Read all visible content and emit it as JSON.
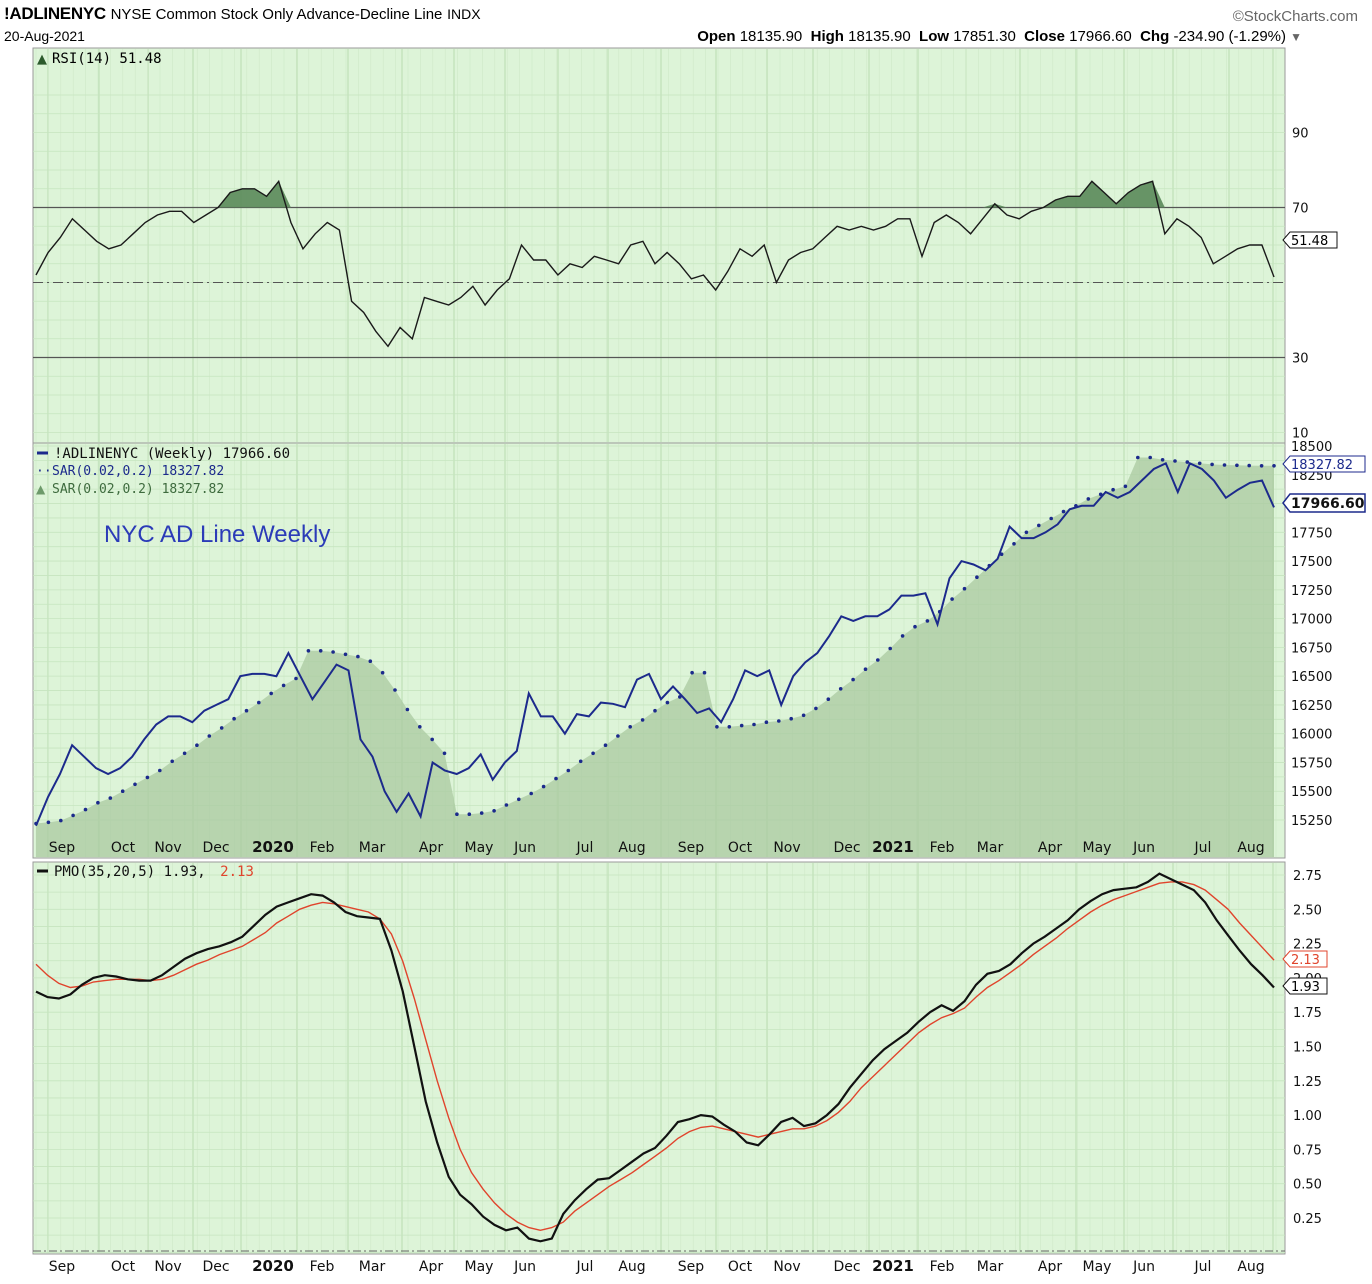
{
  "header": {
    "symbol": "!ADLINENYC",
    "description": "NYSE Common Stock Only Advance-Decline Line",
    "exchange": "INDX",
    "date": "20-Aug-2021",
    "brand": "©StockCharts.com",
    "open_label": "Open",
    "open": "18135.90",
    "high_label": "High",
    "high": "18135.90",
    "low_label": "Low",
    "low": "17851.30",
    "close_label": "Close",
    "close": "17966.60",
    "chg_label": "Chg",
    "chg": "-234.90 (-1.29%)",
    "dropdown_icon": "caret-down-icon"
  },
  "rsi_panel": {
    "legend": "RSI(14) 51.48",
    "last_value": "51.48",
    "ticks": [
      "90",
      "70",
      "30",
      "10"
    ],
    "colors": {
      "bg": "#dff5da",
      "line": "#1a1a1a",
      "fill": "#5a8a5a"
    }
  },
  "price_panel": {
    "legend_line": "!ADLINENYC (Weekly) 17966.60",
    "legend_sar_dots": "SAR(0.02,0.2) 18327.82",
    "legend_sar_area": "SAR(0.02,0.2) 18327.82",
    "annotation": "NYC AD Line Weekly",
    "last_price_tag": "17966.60",
    "last_sar_tag": "18327.82",
    "ticks": [
      "18500",
      "18250",
      "17750",
      "17500",
      "17250",
      "17000",
      "16750",
      "16500",
      "16250",
      "16000",
      "15750",
      "15500",
      "15250"
    ],
    "colors": {
      "line": "#1c2a8c",
      "sar": "#1c2a8c",
      "area": "#a9c9a0",
      "annotation": "#2b3bb8"
    }
  },
  "pmo_panel": {
    "legend_label": "PMO(35,20,5) 1.93,",
    "legend_signal": "2.13",
    "pmo_tag": "1.93",
    "signal_tag": "2.13",
    "ticks": [
      "2.75",
      "2.50",
      "2.25",
      "2.00",
      "1.75",
      "1.50",
      "1.25",
      "1.00",
      "0.75",
      "0.50",
      "0.25"
    ],
    "colors": {
      "pmo": "#111111",
      "signal": "#e0442c"
    }
  },
  "x_axis": {
    "labels": [
      "Sep",
      "Oct",
      "Nov",
      "Dec",
      "2020",
      "Feb",
      "Mar",
      "Apr",
      "May",
      "Jun",
      "Jul",
      "Aug",
      "Sep",
      "Oct",
      "Nov",
      "Dec",
      "2021",
      "Feb",
      "Mar",
      "Apr",
      "May",
      "Jun",
      "Jul",
      "Aug"
    ],
    "bold": [
      "2020",
      "2021"
    ]
  },
  "chart_data": [
    {
      "type": "line",
      "title": "RSI(14)",
      "xlabel": "",
      "ylabel": "",
      "ylim": [
        0,
        100
      ],
      "reference_lines": [
        30,
        50,
        70
      ],
      "grid": true,
      "values": [
        52,
        58,
        62,
        67,
        64,
        61,
        59,
        60,
        63,
        66,
        68,
        69,
        69,
        66,
        68,
        70,
        74,
        75,
        75,
        73,
        77,
        66,
        59,
        63,
        66,
        64,
        45,
        42,
        37,
        33,
        38,
        35,
        46,
        45,
        44,
        46,
        49,
        44,
        48,
        51,
        60,
        56,
        56,
        52,
        55,
        54,
        57,
        56,
        55,
        60,
        61,
        55,
        58,
        55,
        51,
        52,
        48,
        53,
        59,
        57,
        60,
        50,
        56,
        58,
        59,
        62,
        65,
        64,
        65,
        64,
        65,
        67,
        67,
        57,
        66,
        68,
        66,
        63,
        67,
        71,
        68,
        67,
        69,
        70,
        72,
        73,
        73,
        77,
        74,
        71,
        74,
        76,
        77,
        63,
        67,
        65,
        62,
        55,
        57,
        59,
        60,
        60,
        51.48
      ]
    },
    {
      "type": "line",
      "title": "!ADLINENYC (Weekly)",
      "xlabel": "",
      "ylabel": "",
      "ylim": [
        15150,
        18500
      ],
      "grid": true,
      "series": [
        {
          "name": "!ADLINENYC (Weekly)",
          "values": [
            15200,
            15450,
            15650,
            15900,
            15800,
            15700,
            15650,
            15700,
            15800,
            15950,
            16080,
            16150,
            16150,
            16100,
            16200,
            16250,
            16300,
            16500,
            16520,
            16520,
            16500,
            16700,
            16500,
            16300,
            16450,
            16600,
            16550,
            15950,
            15800,
            15500,
            15320,
            15480,
            15280,
            15750,
            15680,
            15650,
            15700,
            15820,
            15600,
            15750,
            15850,
            16350,
            16150,
            16150,
            16000,
            16170,
            16150,
            16270,
            16260,
            16230,
            16470,
            16520,
            16300,
            16410,
            16300,
            16180,
            16220,
            16100,
            16300,
            16550,
            16500,
            16550,
            16250,
            16500,
            16620,
            16700,
            16850,
            17020,
            16980,
            17020,
            17020,
            17080,
            17200,
            17200,
            17220,
            16950,
            17350,
            17500,
            17470,
            17420,
            17520,
            17800,
            17700,
            17700,
            17750,
            17820,
            17950,
            17980,
            17980,
            18100,
            18050,
            18100,
            18200,
            18300,
            18350,
            18100,
            18350,
            18300,
            18200,
            18050,
            18120,
            18180,
            18200,
            17966.6
          ]
        },
        {
          "name": "SAR(0.02,0.2)",
          "values": [
            15220,
            15230,
            15245,
            15290,
            15340,
            15400,
            15440,
            15500,
            15560,
            15620,
            15680,
            15760,
            15830,
            15900,
            15980,
            16050,
            16130,
            16200,
            16270,
            16350,
            16420,
            16480,
            16720,
            16720,
            16710,
            16690,
            16670,
            16630,
            16530,
            16380,
            16210,
            16060,
            15950,
            15830,
            15300,
            15300,
            15310,
            15330,
            15380,
            15430,
            15480,
            15540,
            15610,
            15680,
            15760,
            15830,
            15900,
            15980,
            16060,
            16120,
            16200,
            16270,
            16320,
            16530,
            16530,
            16060,
            16060,
            16070,
            16080,
            16100,
            16110,
            16130,
            16160,
            16220,
            16300,
            16390,
            16470,
            16560,
            16640,
            16740,
            16850,
            16930,
            16980,
            17060,
            17170,
            17260,
            17360,
            17460,
            17560,
            17650,
            17750,
            17810,
            17870,
            17930,
            17980,
            18040,
            18080,
            18120,
            18150,
            18400,
            18400,
            18380,
            18370,
            18360,
            18350,
            18340,
            18335,
            18332,
            18330,
            18328,
            18327.82
          ]
        }
      ]
    },
    {
      "type": "line",
      "title": "PMO(35,20,5)",
      "xlabel": "",
      "ylabel": "",
      "ylim": [
        0.0,
        2.87
      ],
      "grid": true,
      "series": [
        {
          "name": "PMO(35,20,5)",
          "values": [
            1.9,
            1.86,
            1.85,
            1.88,
            1.95,
            2.0,
            2.02,
            2.01,
            1.99,
            1.98,
            1.98,
            2.02,
            2.08,
            2.14,
            2.18,
            2.21,
            2.23,
            2.26,
            2.3,
            2.38,
            2.46,
            2.52,
            2.55,
            2.58,
            2.61,
            2.6,
            2.55,
            2.48,
            2.45,
            2.44,
            2.43,
            2.2,
            1.9,
            1.5,
            1.1,
            0.8,
            0.55,
            0.42,
            0.35,
            0.26,
            0.2,
            0.16,
            0.18,
            0.1,
            0.08,
            0.1,
            0.28,
            0.38,
            0.46,
            0.53,
            0.54,
            0.6,
            0.66,
            0.72,
            0.76,
            0.85,
            0.95,
            0.97,
            1.0,
            0.99,
            0.93,
            0.88,
            0.8,
            0.78,
            0.86,
            0.95,
            0.98,
            0.92,
            0.94,
            1.0,
            1.08,
            1.2,
            1.3,
            1.4,
            1.48,
            1.54,
            1.6,
            1.68,
            1.75,
            1.8,
            1.76,
            1.83,
            1.95,
            2.03,
            2.05,
            2.1,
            2.18,
            2.25,
            2.3,
            2.36,
            2.42,
            2.5,
            2.56,
            2.61,
            2.64,
            2.65,
            2.66,
            2.7,
            2.76,
            2.72,
            2.68,
            2.64,
            2.55,
            2.42,
            2.31,
            2.2,
            2.1,
            2.02,
            1.93
          ]
        },
        {
          "name": "Signal",
          "values": [
            2.1,
            2.02,
            1.96,
            1.93,
            1.94,
            1.97,
            1.98,
            1.99,
            1.99,
            1.99,
            1.98,
            1.99,
            2.02,
            2.06,
            2.1,
            2.13,
            2.17,
            2.2,
            2.23,
            2.28,
            2.33,
            2.4,
            2.45,
            2.5,
            2.53,
            2.55,
            2.54,
            2.52,
            2.5,
            2.48,
            2.43,
            2.32,
            2.12,
            1.85,
            1.55,
            1.25,
            0.98,
            0.75,
            0.58,
            0.46,
            0.36,
            0.28,
            0.22,
            0.18,
            0.16,
            0.18,
            0.22,
            0.3,
            0.36,
            0.42,
            0.48,
            0.53,
            0.58,
            0.64,
            0.7,
            0.76,
            0.83,
            0.88,
            0.91,
            0.92,
            0.9,
            0.88,
            0.86,
            0.84,
            0.86,
            0.88,
            0.9,
            0.9,
            0.92,
            0.96,
            1.02,
            1.1,
            1.2,
            1.28,
            1.36,
            1.44,
            1.52,
            1.6,
            1.66,
            1.71,
            1.74,
            1.78,
            1.86,
            1.93,
            1.98,
            2.04,
            2.1,
            2.17,
            2.23,
            2.29,
            2.36,
            2.42,
            2.48,
            2.53,
            2.57,
            2.6,
            2.63,
            2.66,
            2.69,
            2.7,
            2.7,
            2.68,
            2.64,
            2.57,
            2.5,
            2.4,
            2.31,
            2.22,
            2.13
          ]
        }
      ]
    }
  ]
}
